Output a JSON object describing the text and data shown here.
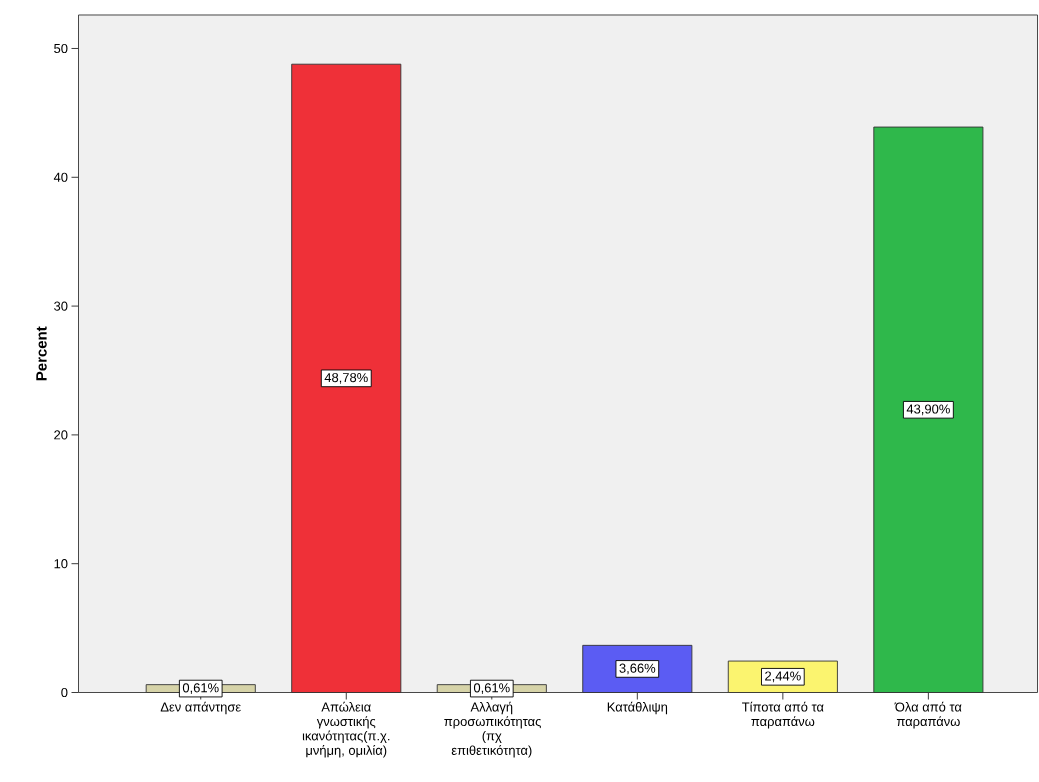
{
  "chart_data": {
    "type": "bar",
    "categories": [
      "Δεν απάντησε",
      "Απώλεια γνωστικής ικανότητας(π.χ. μνήμη, ομιλία)",
      "Αλλαγή προσωπικότητας (πχ επιθετικότητα)",
      "Κατάθλιψη",
      "Τίποτα από τα παραπάνω",
      "Όλα από τα παραπάνω"
    ],
    "values": [
      0.61,
      48.78,
      0.61,
      3.66,
      2.44,
      43.9
    ],
    "colors": [
      "#d6d3a8",
      "#ef3038",
      "#d6d3a8",
      "#5b5cf3",
      "#fbf46f",
      "#2fb84b"
    ],
    "value_labels": [
      "0,61%",
      "48,78%",
      "0,61%",
      "3,66%",
      "2,44%",
      "43,90%"
    ],
    "ylabel": "Percent",
    "ylim": [
      0,
      52.6
    ],
    "yticks": [
      0,
      10,
      20,
      30,
      40,
      50
    ]
  }
}
